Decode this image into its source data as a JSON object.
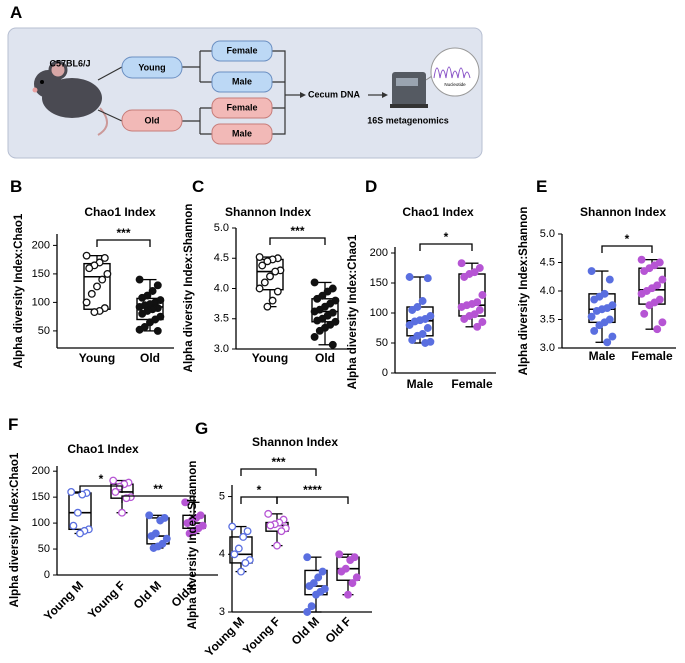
{
  "diagram": {
    "panel": "A",
    "strain": "C57BL6/J",
    "young": "Young",
    "old": "Old",
    "young_female": "Female",
    "young_male": "Male",
    "old_female": "Female",
    "old_male": "Male",
    "step": "Cecum DNA",
    "method": "16S metagenomics",
    "icon_text": "Nucleotide"
  },
  "chart_data": [
    {
      "type": "box",
      "panel": "B",
      "title": "Chao1 Index",
      "ylabel": "Alpha diversity Index:Chao1",
      "categories": [
        "Young",
        "Old"
      ],
      "ylim": [
        20,
        220
      ],
      "yticks": [
        50,
        100,
        150,
        200
      ],
      "annotations": [
        "***"
      ],
      "boxes": [
        {
          "color": "#111111",
          "open": true,
          "min": 83,
          "q1": 88,
          "median": 145,
          "q3": 168,
          "max": 182,
          "points": [
            182,
            178,
            170,
            165,
            160,
            150,
            140,
            128,
            115,
            100,
            90,
            85,
            83
          ]
        },
        {
          "color": "#111111",
          "open": false,
          "min": 50,
          "q1": 70,
          "median": 92,
          "q3": 107,
          "max": 140,
          "points": [
            140,
            130,
            120,
            112,
            108,
            104,
            100,
            97,
            95,
            92,
            90,
            88,
            85,
            80,
            75,
            70,
            65,
            57,
            52,
            50
          ]
        }
      ]
    },
    {
      "type": "box",
      "panel": "C",
      "title": "Shannon Index",
      "ylabel": "Alpha diversity Index:Shannon",
      "categories": [
        "Young",
        "Old"
      ],
      "ylim": [
        3.0,
        5.0
      ],
      "yticks": [
        {
          "value": 3.0,
          "label": "3.0"
        },
        3.5,
        {
          "value": 4.0,
          "label": "4.0"
        },
        4.5,
        {
          "value": 5.0,
          "label": "5.0"
        }
      ],
      "annotations": [
        "***"
      ],
      "boxes": [
        {
          "color": "#111111",
          "open": true,
          "min": 3.7,
          "q1": 3.98,
          "median": 4.28,
          "q3": 4.48,
          "max": 4.52,
          "points": [
            4.52,
            4.5,
            4.48,
            4.45,
            4.38,
            4.3,
            4.28,
            4.2,
            4.1,
            4.0,
            3.95,
            3.8,
            3.7
          ]
        },
        {
          "color": "#111111",
          "open": false,
          "min": 3.07,
          "q1": 3.45,
          "median": 3.62,
          "q3": 3.83,
          "max": 4.1,
          "points": [
            4.1,
            4.0,
            3.95,
            3.88,
            3.83,
            3.8,
            3.75,
            3.7,
            3.65,
            3.62,
            3.6,
            3.55,
            3.5,
            3.47,
            3.45,
            3.4,
            3.35,
            3.3,
            3.2,
            3.07
          ]
        }
      ]
    },
    {
      "type": "box",
      "panel": "D",
      "title": "Chao1 Index",
      "ylabel": "Alpha diversity Index:Chao1",
      "categories": [
        "Male",
        "Female"
      ],
      "ylim": [
        0,
        210
      ],
      "yticks": [
        0,
        50,
        100,
        150,
        200
      ],
      "annotations": [
        "*"
      ],
      "boxes": [
        {
          "color": "#5a6fe0",
          "open": false,
          "min": 50,
          "q1": 62,
          "median": 87,
          "q3": 110,
          "max": 160,
          "points": [
            160,
            158,
            120,
            110,
            105,
            95,
            90,
            88,
            86,
            80,
            75,
            65,
            62,
            55,
            52,
            50
          ]
        },
        {
          "color": "#b655d4",
          "open": false,
          "min": 77,
          "q1": 95,
          "median": 113,
          "q3": 165,
          "max": 183,
          "points": [
            183,
            175,
            168,
            165,
            160,
            130,
            118,
            115,
            113,
            110,
            105,
            98,
            95,
            90,
            85,
            77
          ]
        }
      ]
    },
    {
      "type": "box",
      "panel": "E",
      "title": "Shannon Index",
      "ylabel": "Alpha diversity Index:Shannon",
      "categories": [
        "Male",
        "Female"
      ],
      "ylim": [
        3.0,
        5.0
      ],
      "yticks": [
        {
          "value": 3.0,
          "label": "3.0"
        },
        3.5,
        {
          "value": 4.0,
          "label": "4.0"
        },
        4.5,
        {
          "value": 5.0,
          "label": "5.0"
        }
      ],
      "annotations": [
        "*"
      ],
      "boxes": [
        {
          "color": "#5a6fe0",
          "open": false,
          "min": 3.1,
          "q1": 3.45,
          "median": 3.68,
          "q3": 3.95,
          "max": 4.35,
          "points": [
            4.35,
            4.2,
            3.95,
            3.9,
            3.85,
            3.75,
            3.7,
            3.68,
            3.65,
            3.55,
            3.5,
            3.45,
            3.4,
            3.3,
            3.2,
            3.1
          ]
        },
        {
          "color": "#b655d4",
          "open": false,
          "min": 3.33,
          "q1": 3.77,
          "median": 4.02,
          "q3": 4.4,
          "max": 4.55,
          "points": [
            4.55,
            4.5,
            4.45,
            4.4,
            4.35,
            4.2,
            4.1,
            4.05,
            4.0,
            3.95,
            3.85,
            3.8,
            3.75,
            3.6,
            3.45,
            3.33
          ]
        }
      ]
    },
    {
      "type": "box",
      "panel": "F",
      "title": "Chao1 Index",
      "ylabel": "Alpha diversity Index:Chao1",
      "categories": [
        "Young M",
        "Young F",
        "Old M",
        "Old F"
      ],
      "ylim": [
        0,
        210
      ],
      "yticks": [
        0,
        50,
        100,
        150,
        200
      ],
      "annotations": [
        "*",
        "**"
      ],
      "boxes": [
        {
          "color": "#5a6fe0",
          "open": true,
          "min": 80,
          "q1": 88,
          "median": 120,
          "q3": 158,
          "max": 160,
          "points": [
            160,
            158,
            155,
            120,
            95,
            88,
            85,
            80
          ]
        },
        {
          "color": "#b655d4",
          "open": true,
          "min": 120,
          "q1": 148,
          "median": 160,
          "q3": 175,
          "max": 182,
          "points": [
            182,
            178,
            175,
            170,
            160,
            150,
            148,
            120
          ]
        },
        {
          "color": "#5a6fe0",
          "open": false,
          "min": 52,
          "q1": 60,
          "median": 75,
          "q3": 110,
          "max": 115,
          "points": [
            115,
            110,
            105,
            80,
            75,
            70,
            60,
            55,
            52
          ]
        },
        {
          "color": "#b655d4",
          "open": false,
          "min": 80,
          "q1": 90,
          "median": 100,
          "q3": 115,
          "max": 140,
          "points": [
            140,
            115,
            110,
            105,
            100,
            95,
            90,
            85,
            80
          ]
        }
      ]
    },
    {
      "type": "box",
      "panel": "G",
      "title": "Shannon Index",
      "ylabel": "Alpha diversity Index:Shannon",
      "categories": [
        "Young M",
        "Young F",
        "Old M",
        "Old F"
      ],
      "ylim": [
        3,
        5.2
      ],
      "yticks": [
        3,
        4,
        5
      ],
      "annotations": [
        "***",
        "*",
        "****"
      ],
      "boxes": [
        {
          "color": "#5a6fe0",
          "open": true,
          "min": 3.7,
          "q1": 3.85,
          "median": 4.0,
          "q3": 4.3,
          "max": 4.48,
          "points": [
            4.48,
            4.4,
            4.3,
            4.1,
            4.0,
            3.9,
            3.85,
            3.7
          ]
        },
        {
          "color": "#b655d4",
          "open": true,
          "min": 4.15,
          "q1": 4.4,
          "median": 4.5,
          "q3": 4.55,
          "max": 4.7,
          "points": [
            4.7,
            4.6,
            4.55,
            4.52,
            4.5,
            4.45,
            4.4,
            4.15
          ]
        },
        {
          "color": "#5a6fe0",
          "open": false,
          "min": 3.0,
          "q1": 3.3,
          "median": 3.45,
          "q3": 3.72,
          "max": 3.95,
          "points": [
            3.95,
            3.7,
            3.6,
            3.5,
            3.45,
            3.4,
            3.35,
            3.3,
            3.1,
            3.0
          ]
        },
        {
          "color": "#b655d4",
          "open": false,
          "min": 3.3,
          "q1": 3.55,
          "median": 3.75,
          "q3": 3.95,
          "max": 4.0,
          "points": [
            4.0,
            3.95,
            3.9,
            3.75,
            3.7,
            3.6,
            3.5,
            3.3
          ]
        }
      ]
    }
  ]
}
